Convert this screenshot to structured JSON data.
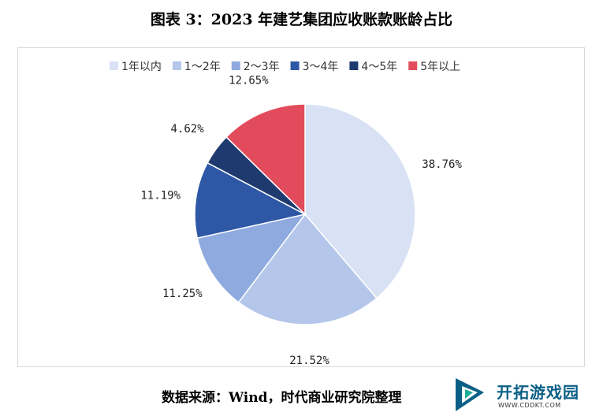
{
  "title": "图表 3：2023 年建艺集团应收账款账龄占比",
  "source": "数据来源：Wind，时代商业研究院整理",
  "watermark": {
    "name": "开拓游戏园",
    "url": "WWW.CDDKT.COM"
  },
  "chart_data": {
    "type": "pie",
    "legend_position": "top",
    "categories": [
      "1年以内",
      "1～2年",
      "2～3年",
      "3～4年",
      "4～5年",
      "5年以上"
    ],
    "values": [
      38.76,
      21.52,
      11.25,
      11.19,
      4.62,
      12.65
    ],
    "labels": [
      "38.76%",
      "21.52%",
      "11.25%",
      "11.19%",
      "4.62%",
      "12.65%"
    ],
    "colors": [
      "#d9e1f4",
      "#b4c6ea",
      "#8eaadf",
      "#2e57a6",
      "#1f3a6e",
      "#e24b5b"
    ]
  }
}
